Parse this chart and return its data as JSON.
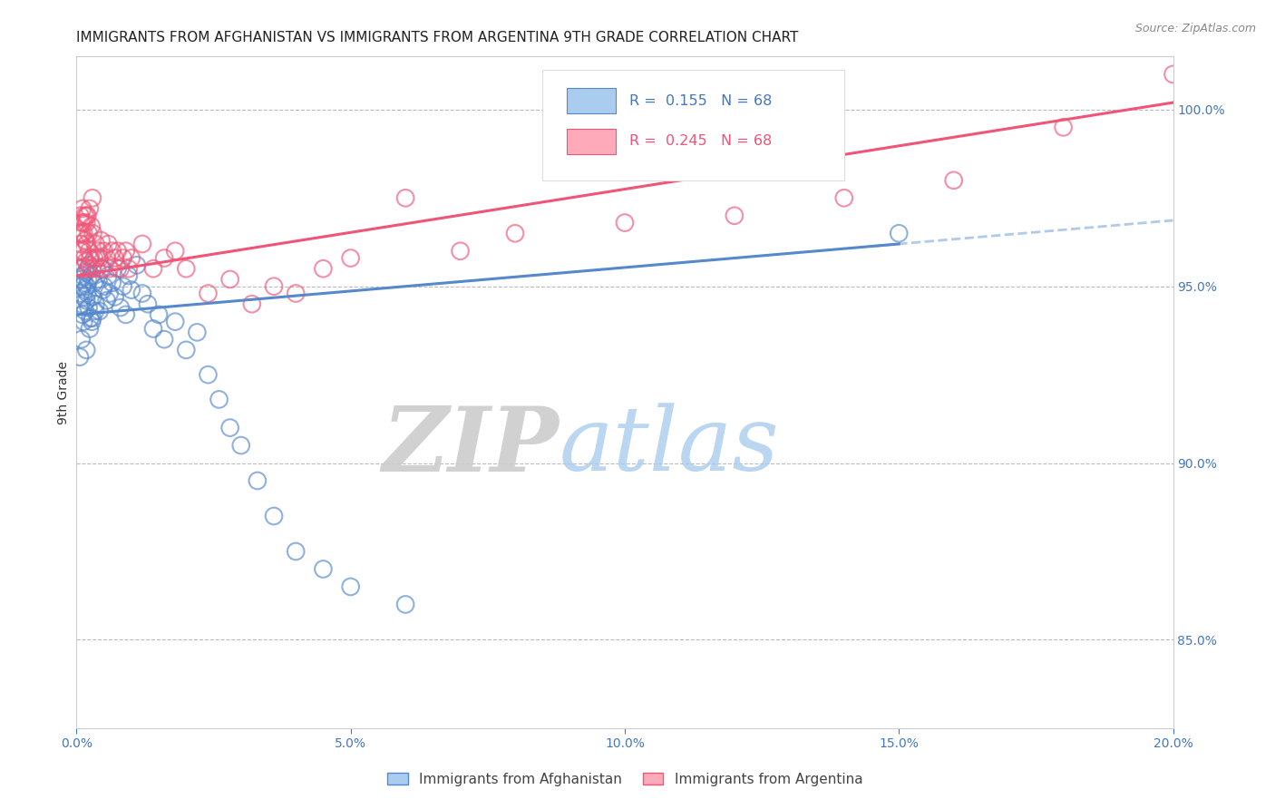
{
  "title": "IMMIGRANTS FROM AFGHANISTAN VS IMMIGRANTS FROM ARGENTINA 9TH GRADE CORRELATION CHART",
  "source": "Source: ZipAtlas.com",
  "ylabel": "9th Grade",
  "right_yticks": [
    85.0,
    90.0,
    95.0,
    100.0
  ],
  "right_ytick_labels": [
    "85.0%",
    "90.0%",
    "95.0%",
    "100.0%"
  ],
  "legend_blue_r_val": "0.155",
  "legend_blue_n_val": "68",
  "legend_pink_r_val": "0.245",
  "legend_pink_n_val": "68",
  "legend_label1": "Immigrants from Afghanistan",
  "legend_label2": "Immigrants from Argentina",
  "watermark_zip": "ZIP",
  "watermark_atlas": "atlas",
  "blue_color": "#5588CC",
  "pink_color": "#EE5577",
  "background_color": "#FFFFFF",
  "title_fontsize": 11,
  "axis_label_color": "#4477BB",
  "grid_color": "#BBBBBB",
  "xmin": 0.0,
  "xmax": 20.0,
  "ymin": 82.5,
  "ymax": 101.5,
  "afghanistan_x": [
    0.05,
    0.07,
    0.08,
    0.09,
    0.1,
    0.11,
    0.12,
    0.13,
    0.14,
    0.15,
    0.16,
    0.17,
    0.18,
    0.19,
    0.2,
    0.21,
    0.22,
    0.23,
    0.25,
    0.27,
    0.28,
    0.3,
    0.32,
    0.35,
    0.37,
    0.4,
    0.42,
    0.45,
    0.48,
    0.5,
    0.55,
    0.58,
    0.6,
    0.65,
    0.7,
    0.75,
    0.8,
    0.85,
    0.9,
    0.95,
    1.0,
    1.1,
    1.2,
    1.3,
    1.4,
    1.5,
    1.6,
    1.8,
    2.0,
    2.2,
    2.4,
    2.6,
    2.8,
    3.0,
    3.3,
    3.6,
    4.0,
    4.5,
    5.0,
    6.0,
    0.06,
    0.09,
    0.13,
    0.18,
    0.24,
    0.29,
    0.34,
    15.0
  ],
  "afghanistan_y": [
    95.5,
    94.8,
    95.2,
    94.5,
    95.0,
    94.2,
    95.3,
    94.7,
    95.1,
    94.9,
    94.3,
    95.4,
    94.6,
    95.0,
    94.8,
    95.2,
    94.4,
    95.6,
    94.1,
    95.3,
    94.0,
    94.7,
    95.1,
    94.5,
    95.8,
    95.2,
    94.3,
    95.5,
    94.9,
    95.0,
    94.6,
    95.3,
    94.8,
    95.1,
    94.7,
    95.5,
    94.4,
    95.0,
    94.2,
    95.3,
    94.9,
    95.6,
    94.8,
    94.5,
    93.8,
    94.2,
    93.5,
    94.0,
    93.2,
    93.7,
    92.5,
    91.8,
    91.0,
    90.5,
    89.5,
    88.5,
    87.5,
    87.0,
    86.5,
    86.0,
    93.0,
    93.5,
    94.0,
    93.2,
    93.8,
    94.1,
    94.3,
    96.5
  ],
  "argentina_x": [
    0.05,
    0.07,
    0.08,
    0.09,
    0.1,
    0.11,
    0.12,
    0.13,
    0.14,
    0.15,
    0.16,
    0.17,
    0.18,
    0.19,
    0.2,
    0.21,
    0.22,
    0.23,
    0.25,
    0.27,
    0.28,
    0.3,
    0.32,
    0.35,
    0.37,
    0.4,
    0.42,
    0.45,
    0.48,
    0.5,
    0.55,
    0.58,
    0.6,
    0.65,
    0.7,
    0.75,
    0.8,
    0.85,
    0.9,
    0.95,
    1.0,
    1.2,
    1.4,
    1.6,
    1.8,
    2.0,
    2.4,
    2.8,
    3.2,
    3.6,
    4.0,
    4.5,
    5.0,
    6.0,
    7.0,
    8.0,
    10.0,
    12.0,
    14.0,
    16.0,
    0.06,
    0.09,
    0.13,
    0.18,
    0.24,
    0.29,
    18.0,
    20.0
  ],
  "argentina_y": [
    96.5,
    97.0,
    96.2,
    96.8,
    95.5,
    97.2,
    96.0,
    96.5,
    95.8,
    97.0,
    96.3,
    95.7,
    96.8,
    96.2,
    97.0,
    95.5,
    96.5,
    96.0,
    95.8,
    96.7,
    95.5,
    96.5,
    95.8,
    96.2,
    95.5,
    96.0,
    95.8,
    96.3,
    95.5,
    96.0,
    95.8,
    96.2,
    95.5,
    96.0,
    95.8,
    96.0,
    95.5,
    95.8,
    96.0,
    95.5,
    95.8,
    96.2,
    95.5,
    95.8,
    96.0,
    95.5,
    94.8,
    95.2,
    94.5,
    95.0,
    94.8,
    95.5,
    95.8,
    97.5,
    96.0,
    96.5,
    96.8,
    97.0,
    97.5,
    98.0,
    96.0,
    96.5,
    96.8,
    97.0,
    97.2,
    97.5,
    99.5,
    101.0
  ],
  "blue_line_x0": 0.0,
  "blue_line_y0": 94.2,
  "blue_line_x1": 15.0,
  "blue_line_y1": 96.2,
  "blue_line_solid_end": 15.0,
  "blue_dash_x0": 14.5,
  "blue_dash_x1": 20.0,
  "pink_line_x0": 0.0,
  "pink_line_y0": 95.3,
  "pink_line_x1": 20.0,
  "pink_line_y1": 100.2
}
